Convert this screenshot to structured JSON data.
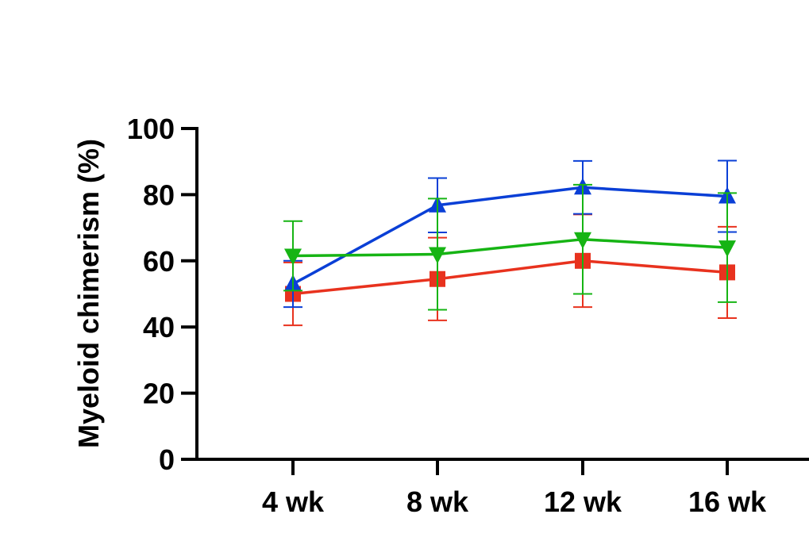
{
  "chart_data": {
    "type": "line",
    "ylabel": "Myeloid chimerism (%)",
    "xlabel": "",
    "categories": [
      "4 wk",
      "8 wk",
      "12 wk",
      "16 wk"
    ],
    "ylim": [
      0,
      100
    ],
    "yticks": [
      0,
      20,
      40,
      60,
      80,
      100
    ],
    "yticklabels": [
      "0",
      "20",
      "40",
      "60",
      "80",
      "100"
    ],
    "grid": false,
    "series": [
      {
        "color": "#e8321e",
        "marker": "square",
        "values": [
          50,
          54.5,
          60,
          56.5
        ],
        "errors": [
          9.5,
          12.5,
          14,
          13.8
        ]
      },
      {
        "color": "#0a3fd6",
        "marker": "triangle-up",
        "values": [
          53,
          76.8,
          82.2,
          79.5
        ],
        "errors": [
          7,
          8.2,
          8,
          10.8
        ]
      },
      {
        "color": "#16b414",
        "marker": "triangle-down",
        "values": [
          61.5,
          62,
          66.5,
          64
        ],
        "errors": [
          10.5,
          16.8,
          16.5,
          16.5
        ]
      }
    ]
  }
}
